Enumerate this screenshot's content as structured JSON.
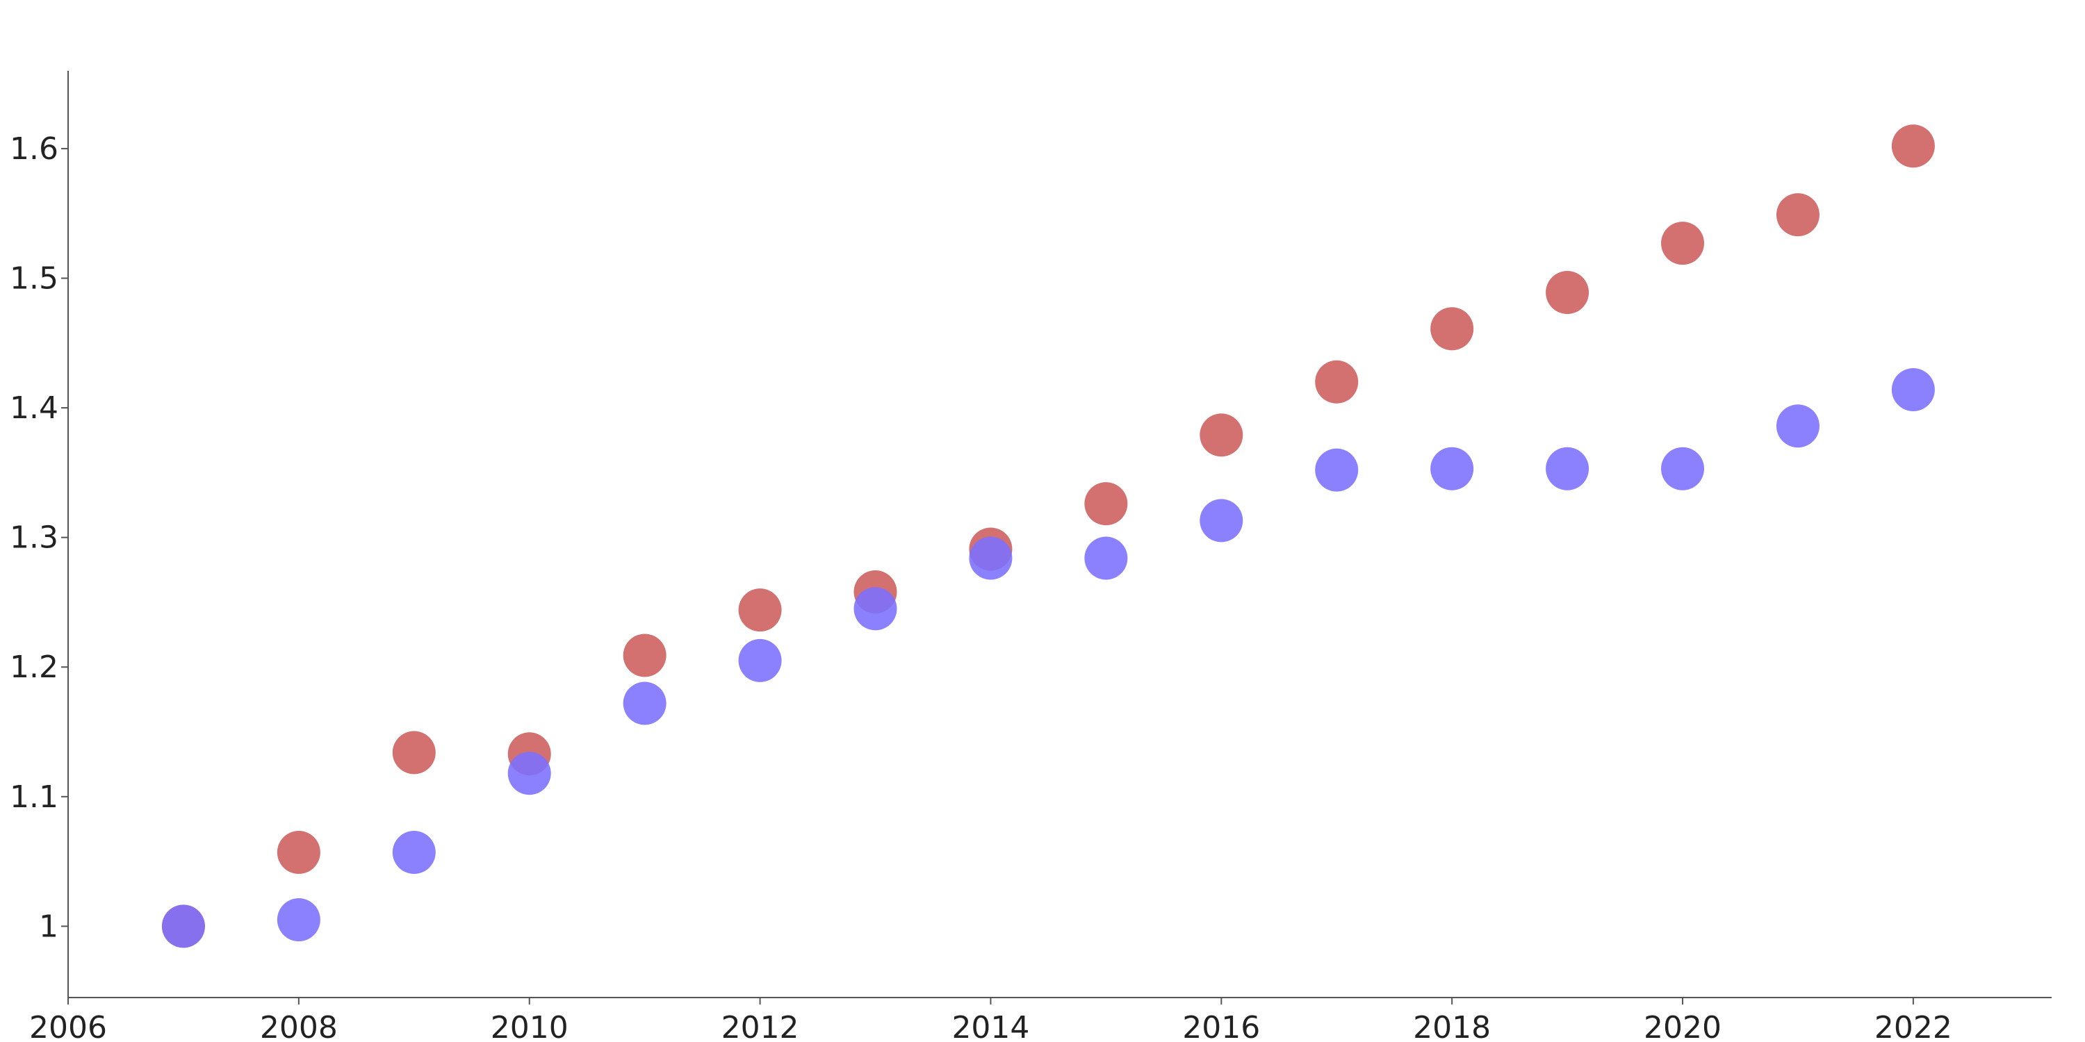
{
  "chart_data": {
    "type": "scatter",
    "title": "",
    "xlabel": "",
    "ylabel": "",
    "xlim": [
      2006,
      2023.2
    ],
    "ylim": [
      0.945,
      1.66
    ],
    "x_ticks": [
      2006,
      2008,
      2010,
      2012,
      2014,
      2016,
      2018,
      2020,
      2022
    ],
    "y_ticks": [
      1,
      1.1,
      1.2,
      1.3,
      1.4,
      1.5,
      1.6
    ],
    "y_tick_labels": [
      "1",
      "1.1",
      "1.2",
      "1.3",
      "1.4",
      "1.5",
      "1.6"
    ],
    "grid": false,
    "legend": "none",
    "series": [
      {
        "color": "#CD5C5C",
        "opacity": 0.88,
        "x": [
          2007,
          2008,
          2009,
          2010,
          2011,
          2012,
          2013,
          2014,
          2015,
          2016,
          2017,
          2018,
          2019,
          2020,
          2021,
          2022
        ],
        "y": [
          1.0,
          1.057,
          1.134,
          1.133,
          1.209,
          1.244,
          1.258,
          1.291,
          1.326,
          1.379,
          1.42,
          1.461,
          1.489,
          1.527,
          1.549,
          1.602
        ]
      },
      {
        "color": "#7B70FF",
        "opacity": 0.88,
        "x": [
          2007,
          2008,
          2009,
          2010,
          2011,
          2012,
          2013,
          2014,
          2015,
          2016,
          2017,
          2018,
          2019,
          2020,
          2021,
          2022
        ],
        "y": [
          1.0,
          1.005,
          1.057,
          1.118,
          1.172,
          1.205,
          1.245,
          1.284,
          1.284,
          1.313,
          1.352,
          1.353,
          1.353,
          1.353,
          1.386,
          1.414
        ]
      }
    ]
  }
}
